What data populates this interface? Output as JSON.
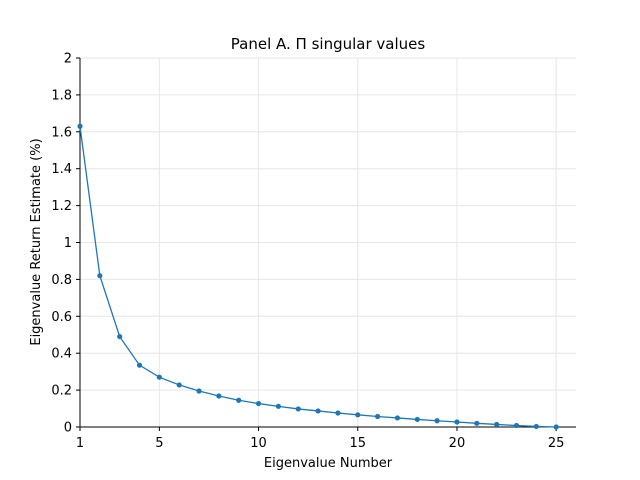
{
  "chart_data": {
    "type": "line",
    "title": "Panel A. Π singular values",
    "xlabel": "Eigenvalue Number",
    "ylabel": "Eigenvalue Return Estimate (%)",
    "xlim": [
      1,
      26
    ],
    "ylim": [
      0,
      2
    ],
    "x_ticks": [
      1,
      5,
      10,
      15,
      20,
      25
    ],
    "y_ticks": [
      0,
      0.2,
      0.4,
      0.6,
      0.8,
      1,
      1.2,
      1.4,
      1.6,
      1.8,
      2
    ],
    "x_tick_labels": [
      "1",
      "5",
      "10",
      "15",
      "20",
      "25"
    ],
    "y_tick_labels": [
      "0",
      "0.2",
      "0.4",
      "0.6",
      "0.8",
      "1",
      "1.2",
      "1.4",
      "1.6",
      "1.8",
      "2"
    ],
    "grid": true,
    "series": [
      {
        "color": "#1f77b4",
        "x": [
          1,
          2,
          3,
          4,
          5,
          6,
          7,
          8,
          9,
          10,
          11,
          12,
          13,
          14,
          15,
          16,
          17,
          18,
          19,
          20,
          21,
          22,
          23,
          24,
          25
        ],
        "y": [
          1.63,
          0.82,
          0.49,
          0.335,
          0.27,
          0.228,
          0.195,
          0.168,
          0.145,
          0.127,
          0.112,
          0.098,
          0.087,
          0.076,
          0.066,
          0.057,
          0.049,
          0.041,
          0.034,
          0.027,
          0.02,
          0.014,
          0.008,
          0.003,
          0.0
        ]
      }
    ]
  }
}
